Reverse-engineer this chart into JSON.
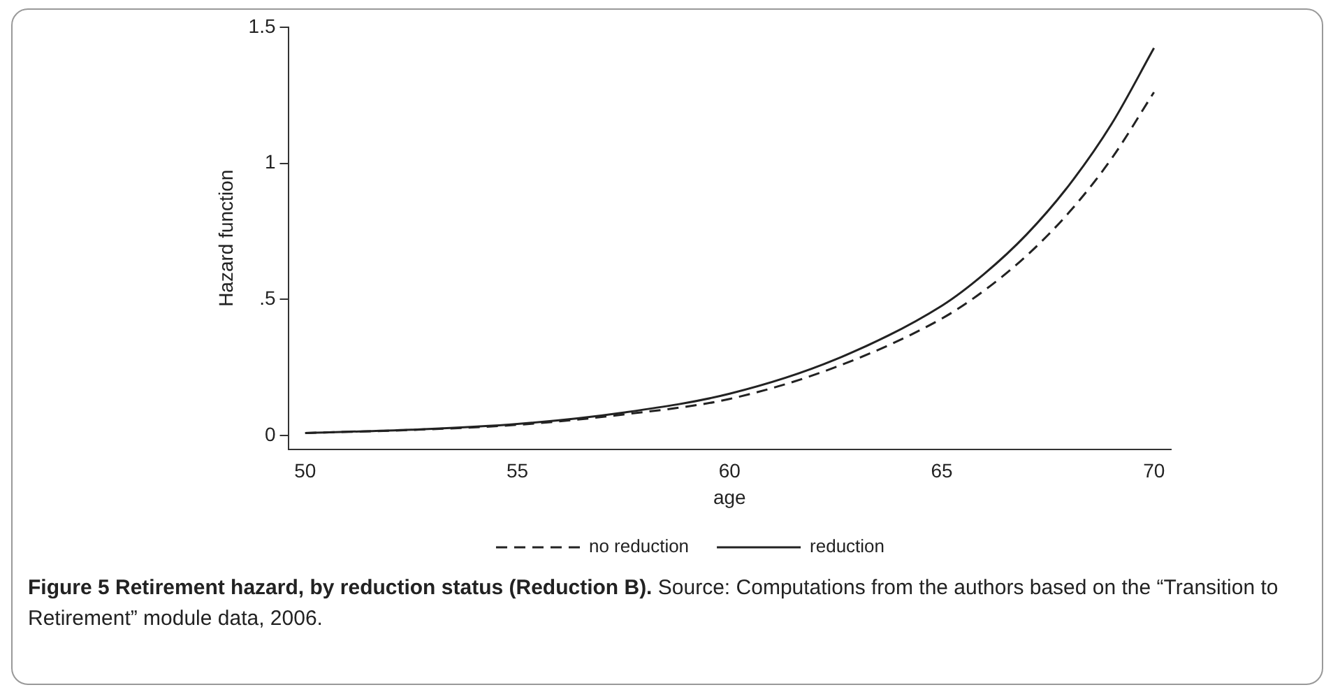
{
  "chart_data": {
    "type": "line",
    "title": "Figure 5 Retirement hazard, by reduction status (Reduction B).",
    "xlabel": "age",
    "ylabel": "Hazard function",
    "x": [
      50,
      52.5,
      55,
      57.5,
      60,
      62.5,
      65,
      66,
      67,
      68,
      69,
      70
    ],
    "series": [
      {
        "name": "no reduction",
        "color": "#222222",
        "line_style": "dashed",
        "values": [
          0.01,
          0.021,
          0.04,
          0.078,
          0.135,
          0.252,
          0.43,
          0.533,
          0.661,
          0.82,
          1.017,
          1.261
        ]
      },
      {
        "name": "reduction",
        "color": "#222222",
        "line_style": "solid",
        "values": [
          0.01,
          0.022,
          0.043,
          0.085,
          0.154,
          0.28,
          0.477,
          0.594,
          0.739,
          0.92,
          1.144,
          1.423
        ]
      }
    ],
    "xlim": [
      49.6,
      70.4
    ],
    "xticks": [
      50,
      55,
      60,
      65,
      70
    ],
    "ylim": [
      -0.05,
      1.5
    ],
    "yticks": [
      0,
      {
        "value": 0.5,
        "label": ".5"
      },
      1,
      1.5
    ],
    "grid": false,
    "legend": "bottom",
    "marker": "none",
    "annotations": [
      "Source: Computations from the authors based on the “Transition to Retirement” module data, 2006."
    ]
  }
}
